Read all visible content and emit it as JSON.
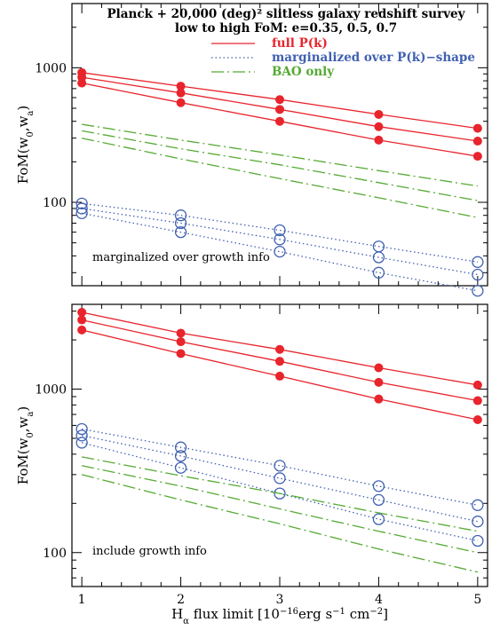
{
  "colors": {
    "full": "#e8242c",
    "marg": "#4060b0",
    "bao": "#55aa33",
    "axis": "#000000"
  },
  "chart_data": [
    {
      "type": "line",
      "panel": "top",
      "title": "Planck + 20,000 (deg)² slitless galaxy redshift survey",
      "subtitle": "low to high FoM: e=0.35, 0.5, 0.7",
      "ylabel": "FoM(w0,wa)",
      "ylabel_main": "FoM(w",
      "ylabel_sub1": "0",
      "ylabel_mid": ",w",
      "ylabel_sub2": "a",
      "ylabel_end": ")",
      "annotation": "marginalized over growth info",
      "yscale": "log",
      "ylim": [
        24,
        3000
      ],
      "xlim": [
        0.9,
        5.1
      ],
      "yticks": [
        100,
        1000
      ],
      "ytick_labels": [
        "100",
        "1000"
      ],
      "legend": [
        {
          "label": "full P(k)",
          "style": "solid"
        },
        {
          "label": "marginalized over P(k)−shape",
          "style": "dotted"
        },
        {
          "label": "BAO only",
          "style": "dashdot"
        }
      ],
      "x": [
        1,
        2,
        3,
        4,
        5
      ],
      "series": [
        {
          "group": "full",
          "style": "solid",
          "marker": "filled",
          "values": [
            920,
            730,
            580,
            450,
            355
          ]
        },
        {
          "group": "full",
          "style": "solid",
          "marker": "filled",
          "values": [
            850,
            650,
            490,
            365,
            285
          ]
        },
        {
          "group": "full",
          "style": "solid",
          "marker": "filled",
          "values": [
            770,
            550,
            400,
            290,
            220
          ]
        },
        {
          "group": "marg",
          "style": "dotted",
          "marker": "open",
          "values": [
            98,
            80,
            62,
            47,
            36
          ]
        },
        {
          "group": "marg",
          "style": "dotted",
          "marker": "open",
          "values": [
            90,
            70,
            53,
            39,
            29
          ]
        },
        {
          "group": "marg",
          "style": "dotted",
          "marker": "open",
          "values": [
            83,
            60,
            43,
            30,
            22
          ]
        },
        {
          "group": "bao",
          "style": "dashdot",
          "marker": "none",
          "values": [
            380,
            290,
            225,
            172,
            132
          ]
        },
        {
          "group": "bao",
          "style": "dashdot",
          "marker": "none",
          "values": [
            340,
            250,
            190,
            140,
            103
          ]
        },
        {
          "group": "bao",
          "style": "dashdot",
          "marker": "none",
          "values": [
            300,
            210,
            150,
            108,
            77
          ]
        }
      ]
    },
    {
      "type": "line",
      "panel": "bottom",
      "ylabel": "FoM(w0,wa)",
      "ylabel_main": "FoM(w",
      "ylabel_sub1": "0",
      "ylabel_mid": ",w",
      "ylabel_sub2": "a",
      "ylabel_end": ")",
      "annotation": "include growth info",
      "xlabel": "Hα flux limit [10⁻¹⁶erg s⁻¹ cm⁻²]",
      "xlabel_pre": "H",
      "xlabel_alpha": "α",
      "xlabel_mid": " flux limit [10",
      "xlabel_exp1": "−16",
      "xlabel_mid2": "erg s",
      "xlabel_exp2": "−1",
      "xlabel_mid3": " cm",
      "xlabel_exp3": "−2",
      "xlabel_end": "]",
      "yscale": "log",
      "ylim": [
        62,
        3300
      ],
      "xlim": [
        0.9,
        5.1
      ],
      "xticks": [
        1,
        2,
        3,
        4,
        5
      ],
      "xtick_labels": [
        "1",
        "2",
        "3",
        "4",
        "5"
      ],
      "yticks": [
        100,
        1000
      ],
      "ytick_labels": [
        "100",
        "1000"
      ],
      "x": [
        1,
        2,
        3,
        4,
        5
      ],
      "series": [
        {
          "group": "full",
          "style": "solid",
          "marker": "filled",
          "values": [
            2950,
            2200,
            1750,
            1350,
            1060
          ]
        },
        {
          "group": "full",
          "style": "solid",
          "marker": "filled",
          "values": [
            2650,
            1950,
            1480,
            1100,
            850
          ]
        },
        {
          "group": "full",
          "style": "solid",
          "marker": "filled",
          "values": [
            2300,
            1650,
            1200,
            870,
            650
          ]
        },
        {
          "group": "marg",
          "style": "dotted",
          "marker": "open",
          "values": [
            570,
            440,
            340,
            255,
            195
          ]
        },
        {
          "group": "marg",
          "style": "dotted",
          "marker": "open",
          "values": [
            520,
            390,
            285,
            210,
            155
          ]
        },
        {
          "group": "marg",
          "style": "dotted",
          "marker": "open",
          "values": [
            470,
            330,
            230,
            160,
            118
          ]
        },
        {
          "group": "bao",
          "style": "dashdot",
          "marker": "none",
          "values": [
            385,
            295,
            230,
            175,
            135
          ]
        },
        {
          "group": "bao",
          "style": "dashdot",
          "marker": "none",
          "values": [
            340,
            255,
            185,
            135,
            100
          ]
        },
        {
          "group": "bao",
          "style": "dashdot",
          "marker": "none",
          "values": [
            300,
            210,
            150,
            105,
            76
          ]
        }
      ]
    }
  ]
}
